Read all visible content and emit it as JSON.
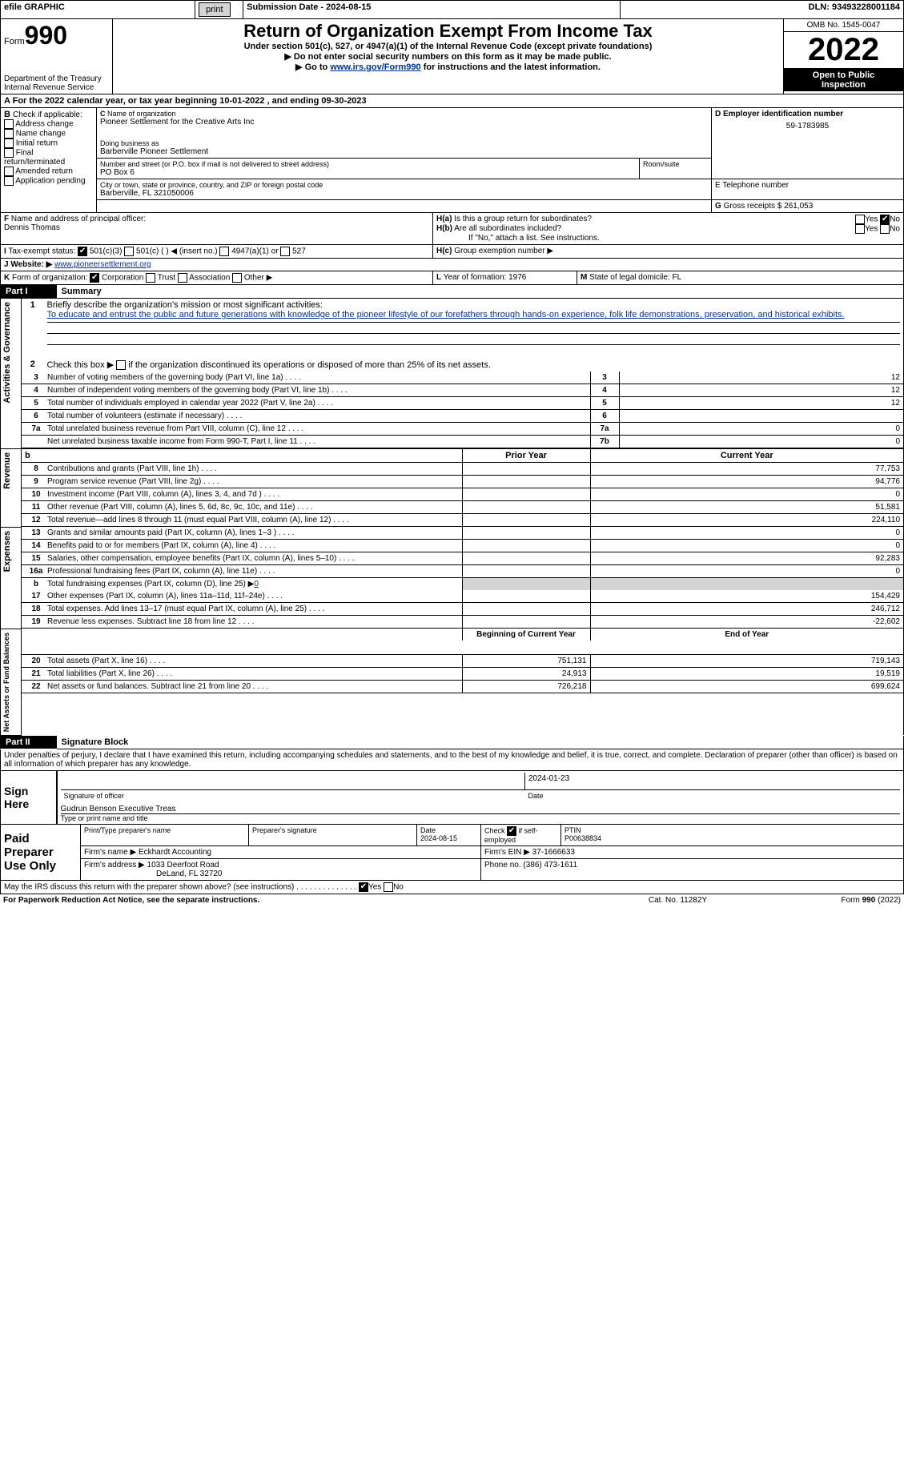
{
  "top": {
    "efile": "efile GRAPHIC",
    "print": "print",
    "subdate_label": "Submission Date - ",
    "subdate": "2024-08-15",
    "dln_label": "DLN: ",
    "dln": "93493228001184"
  },
  "header": {
    "form_label": "Form",
    "form_no": "990",
    "dept1": "Department of the Treasury",
    "dept2": "Internal Revenue Service",
    "title": "Return of Organization Exempt From Income Tax",
    "sub1": "Under section 501(c), 527, or 4947(a)(1) of the Internal Revenue Code (except private foundations)",
    "sub2": "Do not enter social security numbers on this form as it may be made public.",
    "sub3": "Go to",
    "sub3_link": "www.irs.gov/Form990",
    "sub3_b": "for instructions and the latest information.",
    "omb": "OMB No. 1545-0047",
    "year": "2022",
    "inspect1": "Open to Public",
    "inspect2": "Inspection"
  },
  "A": {
    "text": "For the 2022 calendar year, or tax year beginning",
    "begin": "10-01-2022",
    "mid": ", and ending",
    "end": "09-30-2023"
  },
  "B": {
    "label": "B",
    "check": "Check if applicable:",
    "opts": [
      "Address change",
      "Name change",
      "Initial return",
      "Final return/terminated",
      "Amended return",
      "Application pending"
    ]
  },
  "C": {
    "name_label": "Name of organization",
    "name": "Pioneer Settlement for the Creative Arts Inc",
    "dba_label": "Doing business as",
    "dba": "Barberville Pioneer Settlement",
    "street_label": "Number and street (or P.O. box if mail is not delivered to street address)",
    "street": "PO Box 6",
    "suite_label": "Room/suite",
    "city_label": "City or town, state or province, country, and ZIP or foreign postal code",
    "city": "Barberville, FL  321050006"
  },
  "D": {
    "label": "D Employer identification number",
    "ein": "59-1783985"
  },
  "E": {
    "label": "E Telephone number",
    "val": ""
  },
  "G": {
    "label": "G",
    "text": "Gross receipts $",
    "val": "261,053"
  },
  "F": {
    "label": "F",
    "text": "Name and address of principal officer:",
    "name": "Dennis Thomas"
  },
  "H": {
    "a": "Is this a group return for subordinates?",
    "b": "Are all subordinates included?",
    "b_note": "If \"No,\" attach a list. See instructions.",
    "c": "Group exemption number ▶",
    "yes": "Yes",
    "no": "No"
  },
  "I": {
    "label": "I",
    "text": "Tax-exempt status:",
    "o1": "501(c)(3)",
    "o2": "501(c) (   ) ◀ (insert no.)",
    "o3": "4947(a)(1) or",
    "o4": "527"
  },
  "J": {
    "label": "J",
    "text": "Website: ▶",
    "link": "www.pioneersettlement.org"
  },
  "K": {
    "label": "K",
    "text": "Form of organization:",
    "o1": "Corporation",
    "o2": "Trust",
    "o3": "Association",
    "o4": "Other ▶"
  },
  "L": {
    "label": "L",
    "text": "Year of formation:",
    "val": "1976"
  },
  "M": {
    "label": "M",
    "text": "State of legal domicile:",
    "val": "FL"
  },
  "partI": {
    "title": "Part I",
    "sub": "Summary",
    "l1_label": "1",
    "l1": "Briefly describe the organization's mission or most significant activities:",
    "l1_text": "To educate and entrust the public and future generations with knowledge of the pioneer lifestyle of our forefathers through hands-on experience, folk life demonstrations, preservation, and historical exhibits.",
    "l2_label": "2",
    "l2": "Check this box ▶",
    "l2b": "if the organization discontinued its operations or disposed of more than 25% of its net assets.",
    "rows": [
      {
        "n": "3",
        "t": "Number of voting members of the governing body (Part VI, line 1a)",
        "rn": "3",
        "v": "12"
      },
      {
        "n": "4",
        "t": "Number of independent voting members of the governing body (Part VI, line 1b)",
        "rn": "4",
        "v": "12"
      },
      {
        "n": "5",
        "t": "Total number of individuals employed in calendar year 2022 (Part V, line 2a)",
        "rn": "5",
        "v": "12"
      },
      {
        "n": "6",
        "t": "Total number of volunteers (estimate if necessary)",
        "rn": "6",
        "v": ""
      },
      {
        "n": "7a",
        "t": "Total unrelated business revenue from Part VIII, column (C), line 12",
        "rn": "7a",
        "v": "0"
      },
      {
        "n": "",
        "t": "Net unrelated business taxable income from Form 990-T, Part I, line 11",
        "rn": "7b",
        "v": "0"
      }
    ],
    "prior": "Prior Year",
    "current": "Current Year",
    "rev": [
      {
        "n": "8",
        "t": "Contributions and grants (Part VIII, line 1h)",
        "p": "",
        "c": "77,753"
      },
      {
        "n": "9",
        "t": "Program service revenue (Part VIII, line 2g)",
        "p": "",
        "c": "94,776"
      },
      {
        "n": "10",
        "t": "Investment income (Part VIII, column (A), lines 3, 4, and 7d )",
        "p": "",
        "c": "0"
      },
      {
        "n": "11",
        "t": "Other revenue (Part VIII, column (A), lines 5, 6d, 8c, 9c, 10c, and 11e)",
        "p": "",
        "c": "51,581"
      },
      {
        "n": "12",
        "t": "Total revenue—add lines 8 through 11 (must equal Part VIII, column (A), line 12)",
        "p": "",
        "c": "224,110"
      }
    ],
    "exp": [
      {
        "n": "13",
        "t": "Grants and similar amounts paid (Part IX, column (A), lines 1–3 )",
        "p": "",
        "c": "0"
      },
      {
        "n": "14",
        "t": "Benefits paid to or for members (Part IX, column (A), line 4)",
        "p": "",
        "c": "0"
      },
      {
        "n": "15",
        "t": "Salaries, other compensation, employee benefits (Part IX, column (A), lines 5–10)",
        "p": "",
        "c": "92,283"
      },
      {
        "n": "16a",
        "t": "Professional fundraising fees (Part IX, column (A), line 11e)",
        "p": "",
        "c": "0"
      },
      {
        "n": "b",
        "t": "Total fundraising expenses (Part IX, column (D), line 25) ▶",
        "sp": true,
        "spv": "0"
      },
      {
        "n": "17",
        "t": "Other expenses (Part IX, column (A), lines 11a–11d, 11f–24e)",
        "p": "",
        "c": "154,429"
      },
      {
        "n": "18",
        "t": "Total expenses. Add lines 13–17 (must equal Part IX, column (A), line 25)",
        "p": "",
        "c": "246,712"
      },
      {
        "n": "19",
        "t": "Revenue less expenses. Subtract line 18 from line 12",
        "p": "",
        "c": "-22,602"
      }
    ],
    "begin": "Beginning of Current Year",
    "end": "End of Year",
    "net": [
      {
        "n": "20",
        "t": "Total assets (Part X, line 16)",
        "p": "751,131",
        "c": "719,143"
      },
      {
        "n": "21",
        "t": "Total liabilities (Part X, line 26)",
        "p": "24,913",
        "c": "19,519"
      },
      {
        "n": "22",
        "t": "Net assets or fund balances. Subtract line 21 from line 20",
        "p": "726,218",
        "c": "699,624"
      }
    ],
    "side_ag": "Activities & Governance",
    "side_rev": "Revenue",
    "side_exp": "Expenses",
    "side_net": "Net Assets or Fund Balances"
  },
  "partII": {
    "title": "Part II",
    "sub": "Signature Block",
    "decl": "Under penalties of perjury, I declare that I have examined this return, including accompanying schedules and statements, and to the best of my knowledge and belief, it is true, correct, and complete. Declaration of preparer (other than officer) is based on all information of which preparer has any knowledge.",
    "sign": "Sign Here",
    "sig_officer": "Signature of officer",
    "sig_date": "2024-01-23",
    "date_label": "Date",
    "officer_name": "Gudrun Benson  Executive Treas",
    "type_label": "Type or print name and title",
    "paid": "Paid Preparer Use Only",
    "prep_name_label": "Print/Type preparer's name",
    "prep_sig_label": "Preparer's signature",
    "prep_date_label": "Date",
    "prep_date": "2024-08-15",
    "check_if": "Check",
    "check_if2": "if self-employed",
    "ptin_label": "PTIN",
    "ptin": "P00638834",
    "firm_name_label": "Firm's name     ▶",
    "firm_name": "Eckhardt Accounting",
    "firm_ein_label": "Firm's EIN ▶",
    "firm_ein": "37-1666633",
    "firm_addr_label": "Firm's address ▶",
    "firm_addr1": "1033 Deerfoot Road",
    "firm_addr2": "DeLand, FL  32720",
    "phone_label": "Phone no.",
    "phone": "(386) 473-1611",
    "may": "May the IRS discuss this return with the preparer shown above? (see instructions)",
    "footer1": "For Paperwork Reduction Act Notice, see the separate instructions.",
    "footer2": "Cat. No. 11282Y",
    "footer3": "Form",
    "footer3b": "990",
    "footer3c": "(2022)"
  }
}
